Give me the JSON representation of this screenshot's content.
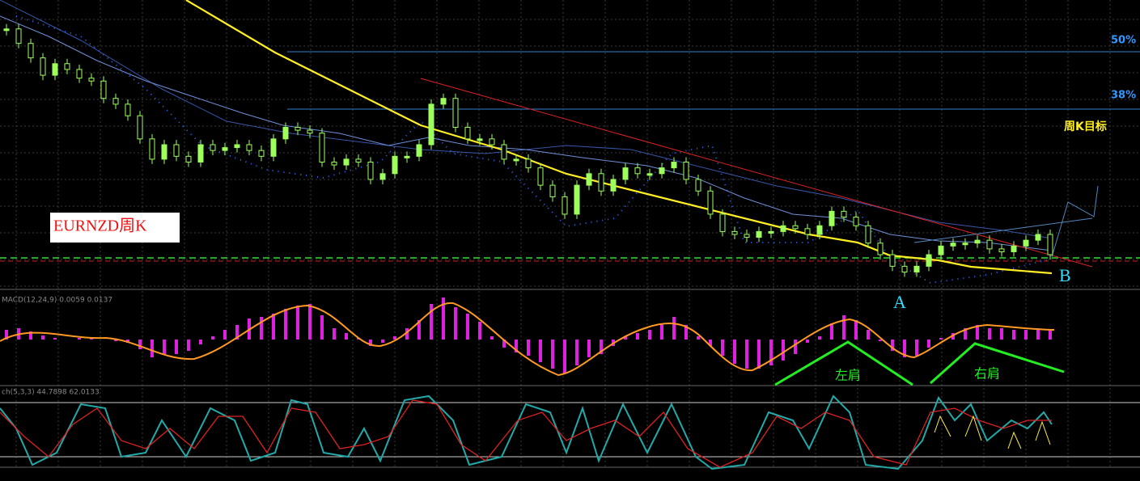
{
  "chart_data": [
    {
      "type": "candlestick",
      "title": "EURNZD周K",
      "color": "#9dff5c",
      "ylim": [
        0,
        100
      ],
      "values": [
        90,
        85,
        80,
        74,
        78,
        76,
        73,
        72,
        66,
        64,
        60,
        52,
        45,
        50,
        46,
        44,
        50,
        48,
        49,
        50,
        48,
        46,
        52,
        56,
        55,
        54,
        44,
        43,
        45,
        44,
        38,
        40,
        46,
        46,
        50,
        64,
        66,
        56,
        52,
        52,
        50,
        45,
        45,
        42,
        36,
        32,
        26,
        36,
        40,
        34,
        38,
        42,
        40,
        40,
        42,
        44,
        38,
        34,
        26,
        20,
        19,
        18,
        20,
        20,
        22,
        21,
        19,
        22,
        27,
        25,
        22,
        16,
        12,
        8,
        6,
        8,
        12,
        15,
        16,
        16,
        17,
        14,
        13,
        15,
        17,
        19,
        12
      ],
      "levels": [
        "50%",
        "38%"
      ],
      "target": "周K目标",
      "points": [
        "A",
        "B"
      ]
    },
    {
      "type": "bar",
      "header": "MACD(12,24,9) 0.0059 0.0137",
      "color": "#e020e0",
      "ylim": [
        -60,
        60
      ],
      "values": [
        12,
        14,
        10,
        5,
        2,
        0,
        2,
        3,
        0,
        -2,
        -4,
        -12,
        -22,
        -18,
        -18,
        -14,
        -6,
        4,
        12,
        18,
        26,
        28,
        32,
        38,
        42,
        44,
        30,
        14,
        8,
        2,
        -8,
        -4,
        4,
        14,
        24,
        44,
        52,
        40,
        32,
        22,
        4,
        -10,
        -16,
        -20,
        -28,
        -36,
        -42,
        -32,
        -22,
        -18,
        -8,
        4,
        8,
        12,
        20,
        28,
        18,
        4,
        -8,
        -20,
        -30,
        -36,
        -36,
        -32,
        -26,
        -18,
        -4,
        4,
        20,
        30,
        24,
        12,
        -2,
        -14,
        -22,
        -20,
        -10,
        2,
        8,
        14,
        18,
        14,
        14,
        12,
        12,
        14,
        12
      ],
      "annotations": [
        "左肩",
        "右肩"
      ]
    },
    {
      "type": "line",
      "header": "ch(5,3,3) 44.7898 62.0133"
    }
  ]
}
